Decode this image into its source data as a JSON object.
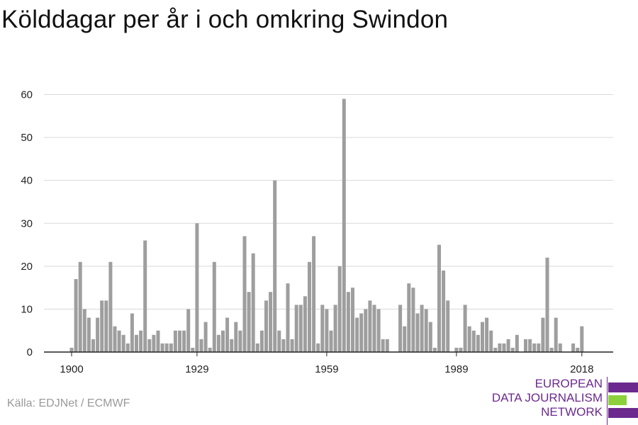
{
  "title": "Kölddagar per år i och omkring Swindon",
  "source": "Källa: EDJNet / ECMWF",
  "logo": {
    "line1": "EUROPEAN",
    "line2": "DATA JOURNALISM",
    "line3": "NETWORK"
  },
  "colors": {
    "bar": "#9e9e9e",
    "grid": "#d9d9d9",
    "axis": "#222222",
    "brand_purple": "#6c2a8e",
    "brand_green": "#8cd13c"
  },
  "chart_data": {
    "type": "bar",
    "title": "",
    "xlabel": "",
    "ylabel": "",
    "ylim": [
      0,
      60
    ],
    "yticks": [
      0,
      10,
      20,
      30,
      40,
      50,
      60
    ],
    "xticks": [
      1900,
      1929,
      1959,
      1989,
      2018
    ],
    "grid": true,
    "series": [
      {
        "x": [
          1900,
          1901,
          1902,
          1903,
          1904,
          1905,
          1906,
          1907,
          1908,
          1909,
          1910,
          1911,
          1912,
          1913,
          1914,
          1915,
          1916,
          1917,
          1918,
          1919,
          1920,
          1921,
          1922,
          1923,
          1924,
          1925,
          1926,
          1927,
          1928,
          1929,
          1930,
          1931,
          1932,
          1933,
          1934,
          1935,
          1936,
          1937,
          1938,
          1939,
          1940,
          1941,
          1942,
          1943,
          1944,
          1945,
          1946,
          1947,
          1948,
          1949,
          1950,
          1951,
          1952,
          1953,
          1954,
          1955,
          1956,
          1957,
          1958,
          1959,
          1960,
          1961,
          1962,
          1963,
          1964,
          1965,
          1966,
          1967,
          1968,
          1969,
          1970,
          1971,
          1972,
          1973,
          1974,
          1975,
          1976,
          1977,
          1978,
          1979,
          1980,
          1981,
          1982,
          1983,
          1984,
          1985,
          1986,
          1987,
          1988,
          1989,
          1990,
          1991,
          1992,
          1993,
          1994,
          1995,
          1996,
          1997,
          1998,
          1999,
          2000,
          2001,
          2002,
          2003,
          2004,
          2005,
          2006,
          2007,
          2008,
          2009,
          2010,
          2011,
          2012,
          2013,
          2014,
          2015,
          2016,
          2017,
          2018,
          2019,
          2020
        ],
        "values": [
          1,
          17,
          21,
          10,
          8,
          3,
          8,
          12,
          12,
          21,
          6,
          5,
          4,
          2,
          9,
          4,
          5,
          26,
          3,
          4,
          5,
          2,
          2,
          2,
          5,
          5,
          5,
          10,
          1,
          30,
          3,
          7,
          1,
          21,
          4,
          5,
          8,
          3,
          7,
          5,
          27,
          14,
          23,
          2,
          5,
          12,
          14,
          40,
          5,
          3,
          16,
          3,
          11,
          11,
          13,
          21,
          27,
          2,
          11,
          10,
          5,
          11,
          20,
          59,
          14,
          15,
          8,
          9,
          10,
          12,
          11,
          10,
          3,
          3,
          0,
          0,
          11,
          6,
          16,
          15,
          9,
          11,
          10,
          7,
          1,
          25,
          19,
          12,
          0,
          1,
          1,
          11,
          6,
          5,
          4,
          7,
          8,
          5,
          1,
          2,
          2,
          3,
          1,
          4,
          0,
          3,
          3,
          2,
          2,
          8,
          22,
          1,
          8,
          2,
          0,
          0,
          2,
          1,
          6,
          0,
          0
        ]
      }
    ]
  }
}
